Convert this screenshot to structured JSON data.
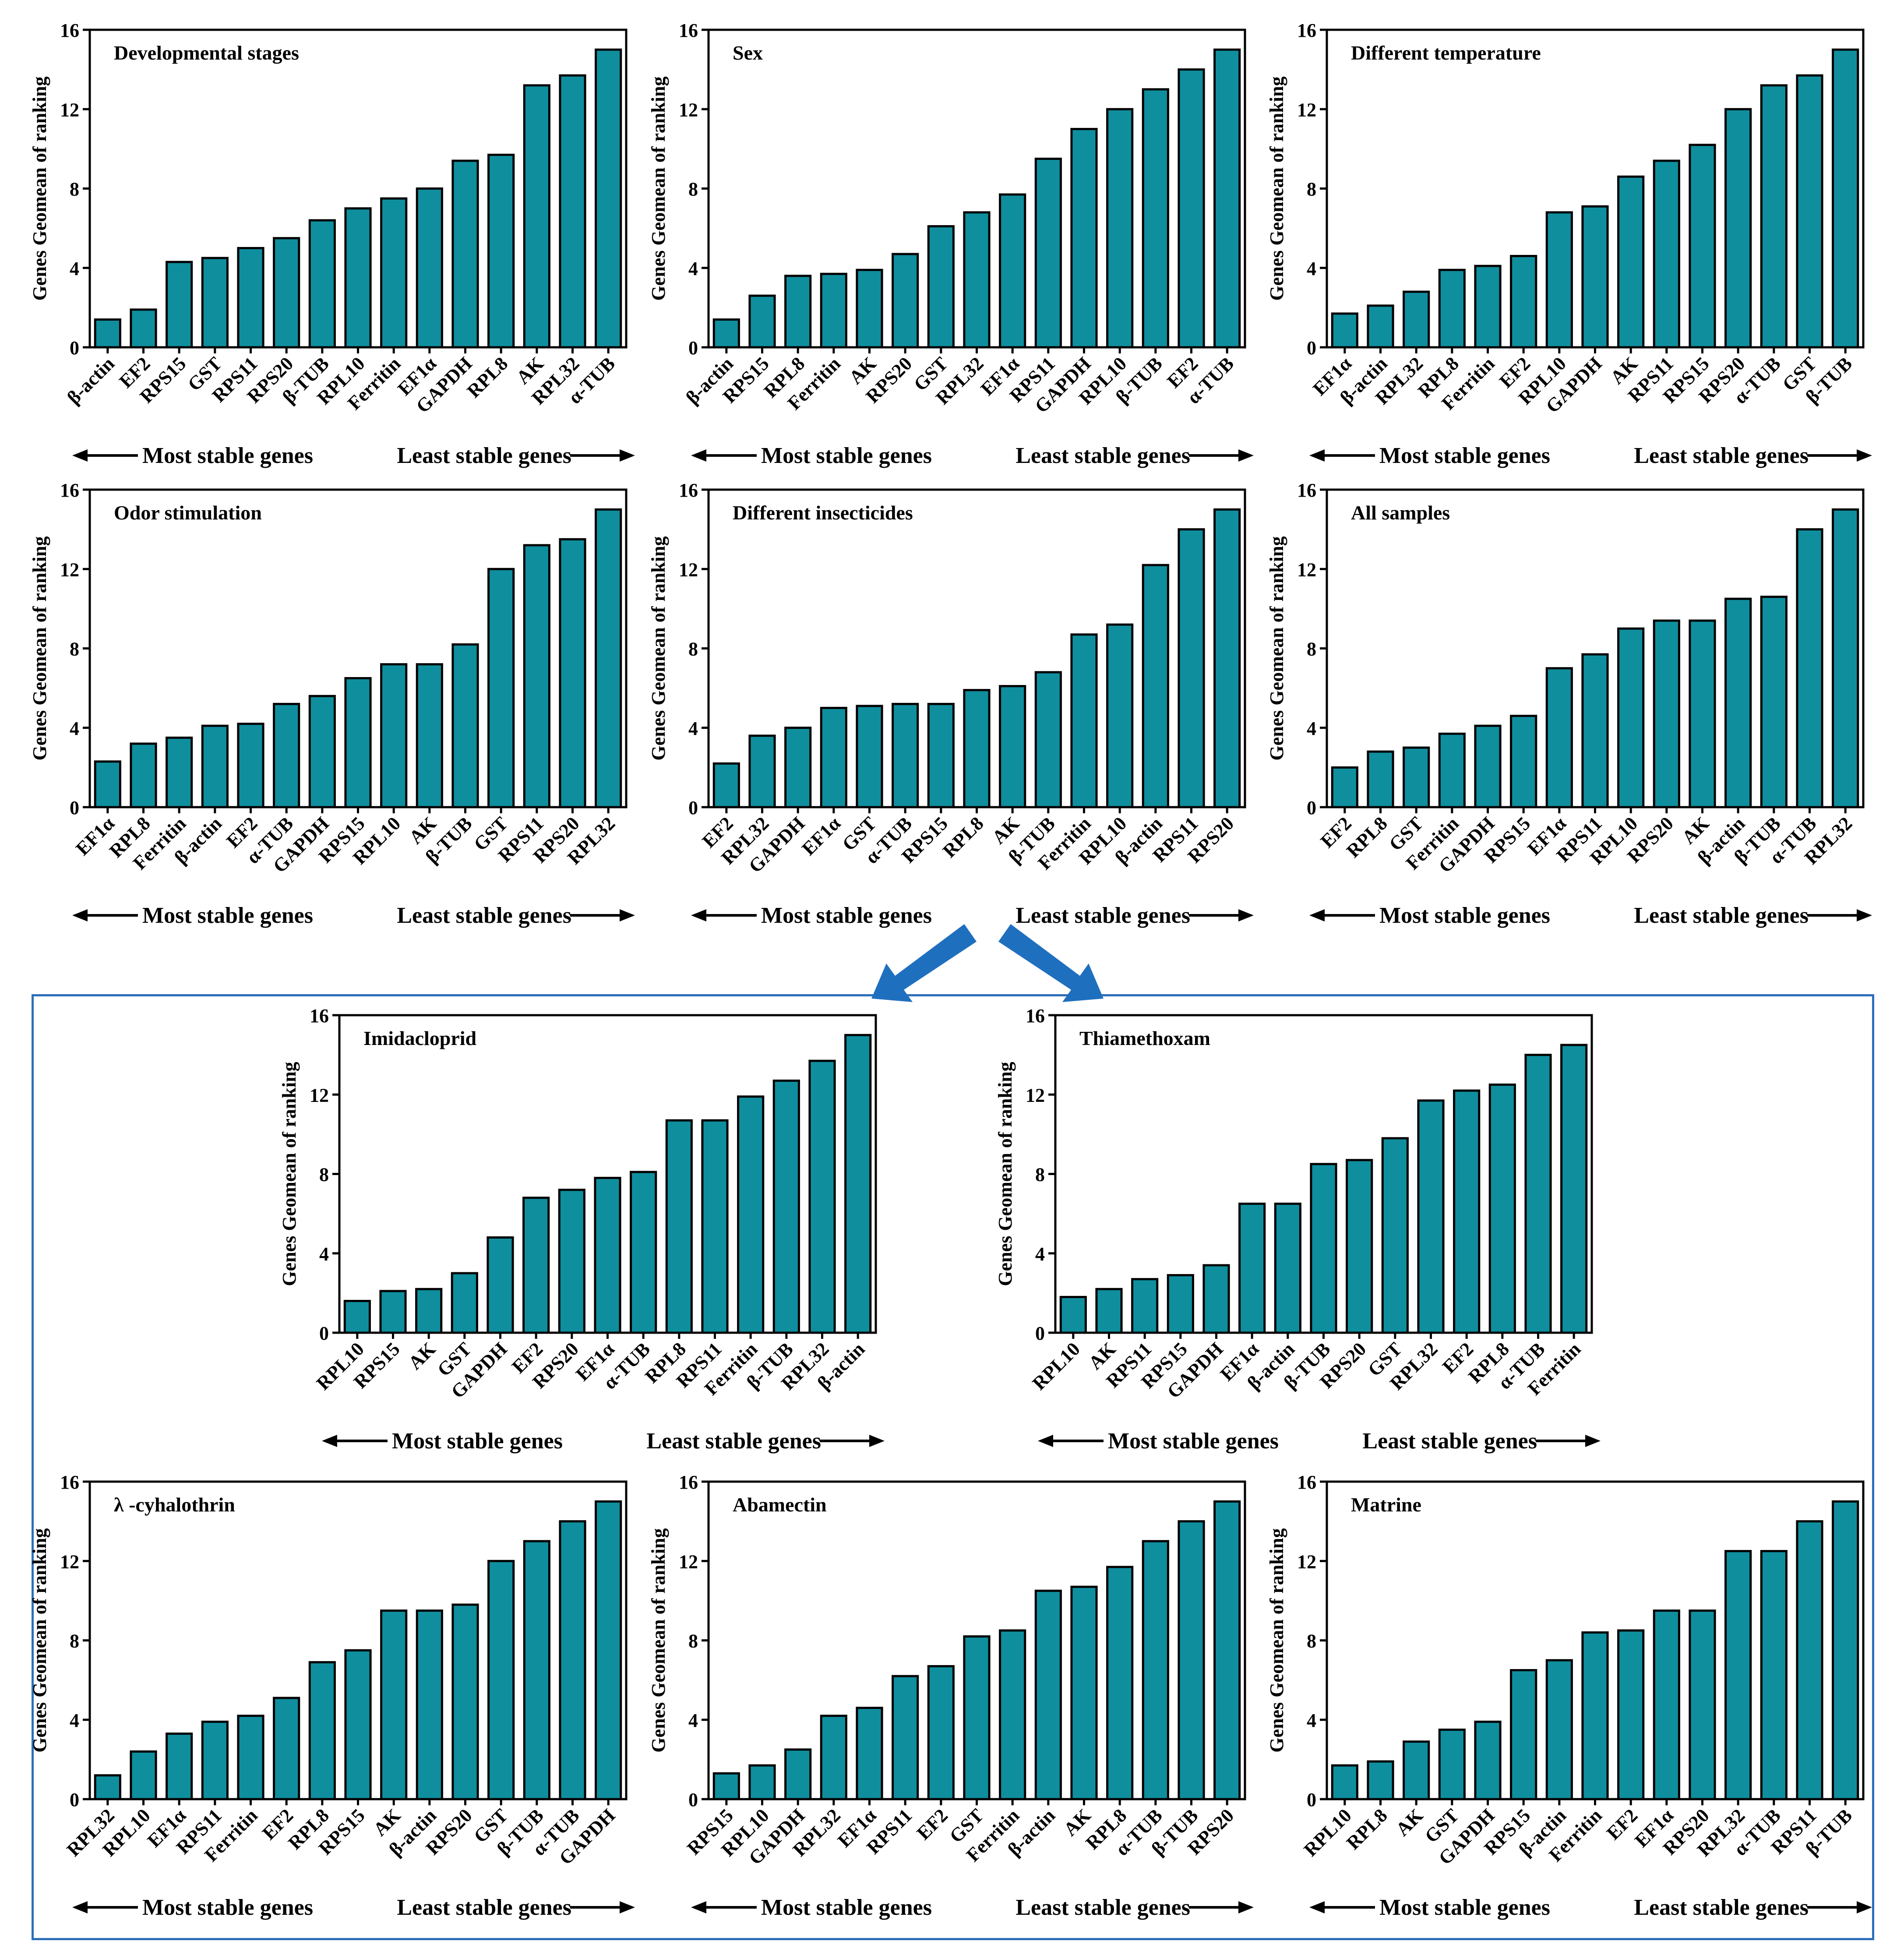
{
  "figure": {
    "y_axis_label": "Genes Geomean of ranking",
    "footer_left": "Most stable genes",
    "footer_right": "Least stable genes",
    "bar_color": "#0f8e9e",
    "box_color": "#2e6fba",
    "arrow_color": "#1f6fbf"
  },
  "chart_data": [
    {
      "type": "bar",
      "title": "Developmental stages",
      "categories": [
        "β-actin",
        "EF2",
        "RPS15",
        "GST",
        "RPS11",
        "RPS20",
        "β-TUB",
        "RPL10",
        "Ferritin",
        "EF1α",
        "GAPDH",
        "RPL8",
        "AK",
        "RPL32",
        "α-TUB"
      ],
      "values": [
        1.4,
        1.9,
        4.3,
        4.5,
        5.0,
        5.5,
        6.4,
        7.0,
        7.5,
        8.0,
        9.4,
        9.7,
        13.2,
        13.7,
        15.0
      ],
      "xlabel": "",
      "ylabel": "Genes Geomean of ranking",
      "ylim": [
        0,
        16
      ],
      "yticks": [
        0,
        4,
        8,
        12,
        16
      ]
    },
    {
      "type": "bar",
      "title": "Sex",
      "categories": [
        "β-actin",
        "RPS15",
        "RPL8",
        "Ferritin",
        "AK",
        "RPS20",
        "GST",
        "RPL32",
        "EF1α",
        "RPS11",
        "GAPDH",
        "RPL10",
        "β-TUB",
        "EF2",
        "α-TUB"
      ],
      "values": [
        1.4,
        2.6,
        3.6,
        3.7,
        3.9,
        4.7,
        6.1,
        6.8,
        7.7,
        9.5,
        11.0,
        12.0,
        13.0,
        14.0,
        15.0
      ],
      "xlabel": "",
      "ylabel": "Genes Geomean of ranking",
      "ylim": [
        0,
        16
      ],
      "yticks": [
        0,
        4,
        8,
        12,
        16
      ]
    },
    {
      "type": "bar",
      "title": "Different temperature",
      "categories": [
        "EF1α",
        "β-actin",
        "RPL32",
        "RPL8",
        "Ferritin",
        "EF2",
        "RPL10",
        "GAPDH",
        "AK",
        "RPS11",
        "RPS15",
        "RPS20",
        "α-TUB",
        "GST",
        "β-TUB"
      ],
      "values": [
        1.7,
        2.1,
        2.8,
        3.9,
        4.1,
        4.6,
        6.8,
        7.1,
        8.6,
        9.4,
        10.2,
        12.0,
        13.2,
        13.7,
        15.0
      ],
      "xlabel": "",
      "ylabel": "Genes Geomean of ranking",
      "ylim": [
        0,
        16
      ],
      "yticks": [
        0,
        4,
        8,
        12,
        16
      ]
    },
    {
      "type": "bar",
      "title": "Odor stimulation",
      "categories": [
        "EF1α",
        "RPL8",
        "Ferritin",
        "β-actin",
        "EF2",
        "α-TUB",
        "GAPDH",
        "RPS15",
        "RPL10",
        "AK",
        "β-TUB",
        "GST",
        "RPS11",
        "RPS20",
        "RPL32"
      ],
      "values": [
        2.3,
        3.2,
        3.5,
        4.1,
        4.2,
        5.2,
        5.6,
        6.5,
        7.2,
        7.2,
        8.2,
        12.0,
        13.2,
        13.5,
        15.0
      ],
      "xlabel": "",
      "ylabel": "Genes Geomean of ranking",
      "ylim": [
        0,
        16
      ],
      "yticks": [
        0,
        4,
        8,
        12,
        16
      ]
    },
    {
      "type": "bar",
      "title": "Different insecticides",
      "categories": [
        "EF2",
        "RPL32",
        "GAPDH",
        "EF1α",
        "GST",
        "α-TUB",
        "RPS15",
        "RPL8",
        "AK",
        "β-TUB",
        "Ferritin",
        "RPL10",
        "β-actin",
        "RPS11",
        "RPS20"
      ],
      "values": [
        2.2,
        3.6,
        4.0,
        5.0,
        5.1,
        5.2,
        5.2,
        5.9,
        6.1,
        6.8,
        8.7,
        9.2,
        12.2,
        14.0,
        15.0
      ],
      "xlabel": "",
      "ylabel": "Genes Geomean of ranking",
      "ylim": [
        0,
        16
      ],
      "yticks": [
        0,
        4,
        8,
        12,
        16
      ]
    },
    {
      "type": "bar",
      "title": "All samples",
      "categories": [
        "EF2",
        "RPL8",
        "GST",
        "Ferritin",
        "GAPDH",
        "RPS15",
        "EF1α",
        "RPS11",
        "RPL10",
        "RPS20",
        "AK",
        "β-actin",
        "β-TUB",
        "α-TUB",
        "RPL32"
      ],
      "values": [
        2.0,
        2.8,
        3.0,
        3.7,
        4.1,
        4.6,
        7.0,
        7.7,
        9.0,
        9.4,
        9.4,
        10.5,
        10.6,
        14.0,
        15.0
      ],
      "xlabel": "",
      "ylabel": "Genes Geomean of ranking",
      "ylim": [
        0,
        16
      ],
      "yticks": [
        0,
        4,
        8,
        12,
        16
      ]
    },
    {
      "type": "bar",
      "title": "Imidacloprid",
      "categories": [
        "RPL10",
        "RPS15",
        "AK",
        "GST",
        "GAPDH",
        "EF2",
        "RPS20",
        "EF1α",
        "α-TUB",
        "RPL8",
        "RPS11",
        "Ferritin",
        "β-TUB",
        "RPL32",
        "β-actin"
      ],
      "values": [
        1.6,
        2.1,
        2.2,
        3.0,
        4.8,
        6.8,
        7.2,
        7.8,
        8.1,
        10.7,
        10.7,
        11.9,
        12.7,
        13.7,
        15.0
      ],
      "xlabel": "",
      "ylabel": "Genes Geomean of ranking",
      "ylim": [
        0,
        16
      ],
      "yticks": [
        0,
        4,
        8,
        12,
        16
      ]
    },
    {
      "type": "bar",
      "title": "Thiamethoxam",
      "categories": [
        "RPL10",
        "AK",
        "RPS11",
        "RPS15",
        "GAPDH",
        "EF1α",
        "β-actin",
        "β-TUB",
        "RPS20",
        "GST",
        "RPL32",
        "EF2",
        "RPL8",
        "α-TUB",
        "Ferritin"
      ],
      "values": [
        1.8,
        2.2,
        2.7,
        2.9,
        3.4,
        6.5,
        6.5,
        8.5,
        8.7,
        9.8,
        11.7,
        12.2,
        12.5,
        14.0,
        14.5
      ],
      "xlabel": "",
      "ylabel": "Genes Geomean of ranking",
      "ylim": [
        0,
        16
      ],
      "yticks": [
        0,
        4,
        8,
        12,
        16
      ]
    },
    {
      "type": "bar",
      "title": "λ -cyhalothrin",
      "categories": [
        "RPL32",
        "RPL10",
        "EF1α",
        "RPS11",
        "Ferritin",
        "EF2",
        "RPL8",
        "RPS15",
        "AK",
        "β-actin",
        "RPS20",
        "GST",
        "β-TUB",
        "α-TUB",
        "GAPDH"
      ],
      "values": [
        1.2,
        2.4,
        3.3,
        3.9,
        4.2,
        5.1,
        6.9,
        7.5,
        9.5,
        9.5,
        9.8,
        12.0,
        13.0,
        14.0,
        15.0
      ],
      "xlabel": "",
      "ylabel": "Genes Geomean of ranking",
      "ylim": [
        0,
        16
      ],
      "yticks": [
        0,
        4,
        8,
        12,
        16
      ]
    },
    {
      "type": "bar",
      "title": "Abamectin",
      "categories": [
        "RPS15",
        "RPL10",
        "GAPDH",
        "RPL32",
        "EF1α",
        "RPS11",
        "EF2",
        "GST",
        "Ferritin",
        "β-actin",
        "AK",
        "RPL8",
        "α-TUB",
        "β-TUB",
        "RPS20"
      ],
      "values": [
        1.3,
        1.7,
        2.5,
        4.2,
        4.6,
        6.2,
        6.7,
        8.2,
        8.5,
        10.5,
        10.7,
        11.7,
        13.0,
        14.0,
        15.0
      ],
      "xlabel": "",
      "ylabel": "Genes Geomean of ranking",
      "ylim": [
        0,
        16
      ],
      "yticks": [
        0,
        4,
        8,
        12,
        16
      ]
    },
    {
      "type": "bar",
      "title": "Matrine",
      "categories": [
        "RPL10",
        "RPL8",
        "AK",
        "GST",
        "GAPDH",
        "RPS15",
        "β-actin",
        "Ferritin",
        "EF2",
        "EF1α",
        "RPS20",
        "RPL32",
        "α-TUB",
        "RPS11",
        "β-TUB"
      ],
      "values": [
        1.7,
        1.9,
        2.9,
        3.5,
        3.9,
        6.5,
        7.0,
        8.4,
        8.5,
        9.5,
        9.5,
        12.5,
        12.5,
        14.0,
        15.0
      ],
      "xlabel": "",
      "ylabel": "Genes Geomean of ranking",
      "ylim": [
        0,
        16
      ],
      "yticks": [
        0,
        4,
        8,
        12,
        16
      ]
    }
  ]
}
